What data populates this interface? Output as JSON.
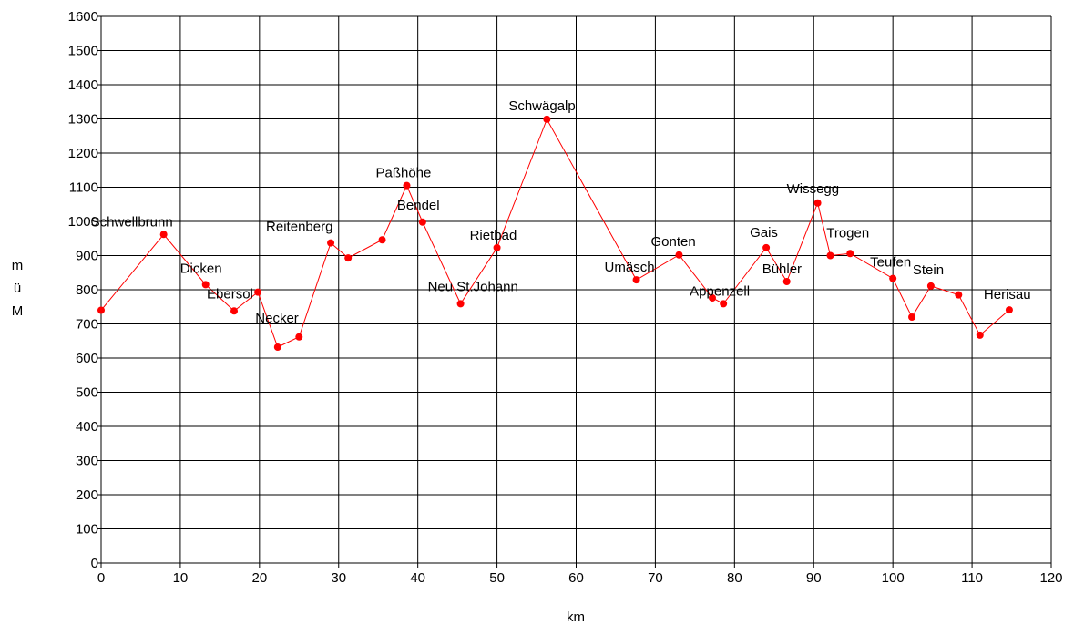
{
  "chart_data": {
    "type": "line",
    "xlabel": "km",
    "ylabel_lines": [
      "m",
      "ü",
      "M"
    ],
    "xlim": [
      0,
      120
    ],
    "ylim": [
      0,
      1600
    ],
    "x_ticks": [
      0,
      10,
      20,
      30,
      40,
      50,
      60,
      70,
      80,
      90,
      100,
      110,
      120
    ],
    "y_ticks": [
      0,
      100,
      200,
      300,
      400,
      500,
      600,
      700,
      800,
      900,
      1000,
      1100,
      1200,
      1300,
      1400,
      1500,
      1600
    ],
    "grid": true,
    "series_color": "#ff0000",
    "points": [
      {
        "x": 0,
        "y": 740,
        "label": ""
      },
      {
        "x": 7.9,
        "y": 962,
        "label": "Schwellbrunn"
      },
      {
        "x": 13.2,
        "y": 815,
        "label": "Dicken"
      },
      {
        "x": 16.8,
        "y": 738,
        "label": "Ebersol"
      },
      {
        "x": 19.8,
        "y": 793,
        "label": ""
      },
      {
        "x": 22.3,
        "y": 632,
        "label": ""
      },
      {
        "x": 25,
        "y": 662,
        "label": "Necker"
      },
      {
        "x": 29,
        "y": 937,
        "label": "Reitenberg"
      },
      {
        "x": 31.2,
        "y": 893,
        "label": ""
      },
      {
        "x": 35.5,
        "y": 946,
        "label": ""
      },
      {
        "x": 38.6,
        "y": 1105,
        "label": "Paßhöhe"
      },
      {
        "x": 40.6,
        "y": 998,
        "label": "Bendel"
      },
      {
        "x": 45.4,
        "y": 759,
        "label": "Neu St.Johann"
      },
      {
        "x": 50,
        "y": 923,
        "label": "Rietbad"
      },
      {
        "x": 56.3,
        "y": 1299,
        "label": "Schwägalp"
      },
      {
        "x": 67.6,
        "y": 829,
        "label": "Umäsch"
      },
      {
        "x": 73,
        "y": 902,
        "label": "Gonten"
      },
      {
        "x": 77.2,
        "y": 776,
        "label": ""
      },
      {
        "x": 78.6,
        "y": 759,
        "label": "Appenzell"
      },
      {
        "x": 84,
        "y": 923,
        "label": "Gais"
      },
      {
        "x": 86.6,
        "y": 824,
        "label": "Bühler"
      },
      {
        "x": 90.5,
        "y": 1054,
        "label": "Wissegg"
      },
      {
        "x": 92.1,
        "y": 900,
        "label": ""
      },
      {
        "x": 94.6,
        "y": 906,
        "label": "Trogen"
      },
      {
        "x": 100,
        "y": 833,
        "label": "Teufen"
      },
      {
        "x": 102.4,
        "y": 720,
        "label": ""
      },
      {
        "x": 104.8,
        "y": 811,
        "label": "Stein"
      },
      {
        "x": 108.3,
        "y": 785,
        "label": ""
      },
      {
        "x": 111,
        "y": 667,
        "label": ""
      },
      {
        "x": 114.7,
        "y": 741,
        "label": "Herisau"
      }
    ]
  }
}
